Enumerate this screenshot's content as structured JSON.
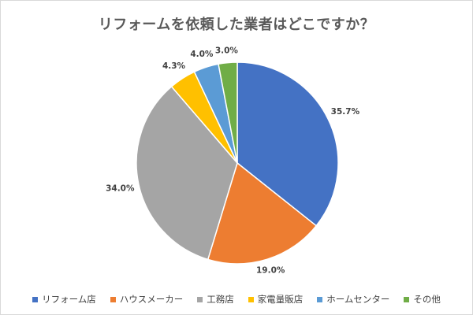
{
  "chart_data": {
    "type": "pie",
    "title": "リフォームを依頼した業者はどこですか？",
    "categories": [
      "リフォーム店",
      "ハウスメーカー",
      "工務店",
      "家電量販店",
      "ホームセンター",
      "その他"
    ],
    "values": [
      35.7,
      19.0,
      34.0,
      4.3,
      4.0,
      3.0
    ],
    "labels": [
      "35.7%",
      "19.0%",
      "34.0%",
      "4.3%",
      "4.0%",
      "3.0%"
    ],
    "colors": [
      "#4472C4",
      "#ED7D31",
      "#A5A5A5",
      "#FFC000",
      "#5B9BD5",
      "#70AD47"
    ],
    "legend_position": "bottom"
  }
}
